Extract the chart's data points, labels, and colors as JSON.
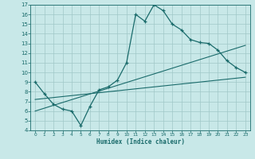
{
  "xlabel": "Humidex (Indice chaleur)",
  "xlim": [
    -0.5,
    23.5
  ],
  "ylim": [
    4,
    17
  ],
  "xticks": [
    0,
    1,
    2,
    3,
    4,
    5,
    6,
    7,
    8,
    9,
    10,
    11,
    12,
    13,
    14,
    15,
    16,
    17,
    18,
    19,
    20,
    21,
    22,
    23
  ],
  "yticks": [
    4,
    5,
    6,
    7,
    8,
    9,
    10,
    11,
    12,
    13,
    14,
    15,
    16,
    17
  ],
  "bg_color": "#c8e8e8",
  "grid_color": "#a0c8c8",
  "line_color": "#1a6b6b",
  "curve1_x": [
    0,
    1,
    2,
    3,
    4,
    5,
    6,
    7,
    8,
    9,
    10,
    11,
    12,
    13,
    14,
    15,
    16,
    17,
    18,
    19,
    20,
    21,
    22,
    23
  ],
  "curve1_y": [
    9.0,
    7.8,
    6.7,
    6.2,
    6.0,
    4.5,
    6.5,
    8.2,
    8.5,
    9.2,
    11.0,
    16.0,
    15.3,
    17.0,
    16.4,
    15.0,
    14.4,
    13.4,
    13.1,
    13.0,
    12.3,
    11.2,
    10.5,
    10.0
  ],
  "line1_x": [
    0,
    23
  ],
  "line1_y": [
    7.2,
    9.5
  ],
  "line2_x": [
    0,
    23
  ],
  "line2_y": [
    6.0,
    12.8
  ]
}
